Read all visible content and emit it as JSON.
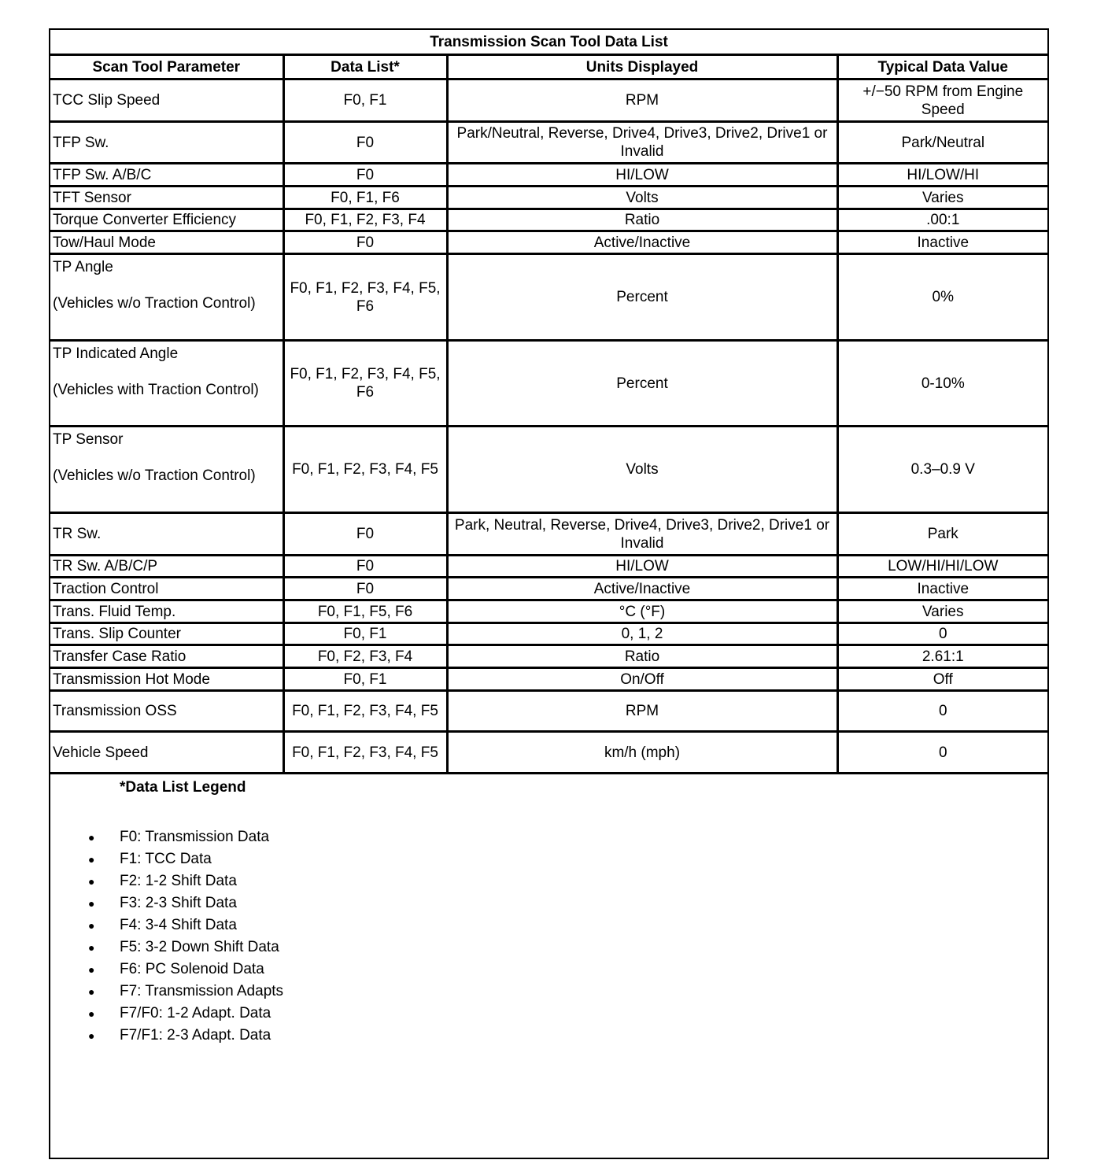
{
  "table": {
    "title": "Transmission Scan Tool Data List",
    "headers": [
      "Scan Tool Parameter",
      "Data List*",
      "Units Displayed",
      "Typical Data Value"
    ],
    "rows": [
      {
        "param": "TCC Slip Speed",
        "note": "",
        "list": "F0, F1",
        "units": "RPM",
        "typical": "+/−50 RPM from Engine Speed"
      },
      {
        "param": "TFP Sw.",
        "note": "",
        "list": "F0",
        "units": "Park/Neutral, Reverse, Drive4, Drive3, Drive2, Drive1 or Invalid",
        "typical": "Park/Neutral"
      },
      {
        "param": "TFP Sw. A/B/C",
        "note": "",
        "list": "F0",
        "units": "HI/LOW",
        "typical": "HI/LOW/HI"
      },
      {
        "param": "TFT Sensor",
        "note": "",
        "list": "F0, F1, F6",
        "units": "Volts",
        "typical": "Varies"
      },
      {
        "param": "Torque Converter Efficiency",
        "note": "",
        "list": "F0, F1, F2, F3, F4",
        "units": "Ratio",
        "typical": ".00:1"
      },
      {
        "param": "Tow/Haul Mode",
        "note": "",
        "list": "F0",
        "units": "Active/Inactive",
        "typical": "Inactive"
      },
      {
        "param": "TP Angle",
        "note": "(Vehicles w/o Traction Control)",
        "list": "F0, F1, F2, F3, F4, F5, F6",
        "units": "Percent",
        "typical": "0%"
      },
      {
        "param": "TP Indicated Angle",
        "note": "(Vehicles with Traction Control)",
        "list": "F0, F1, F2, F3, F4, F5, F6",
        "units": "Percent",
        "typical": "0-10%"
      },
      {
        "param": "TP Sensor",
        "note": "(Vehicles w/o Traction Control)",
        "list": "F0, F1, F2, F3, F4, F5",
        "units": "Volts",
        "typical": "0.3–0.9 V"
      },
      {
        "param": "TR Sw.",
        "note": "",
        "list": "F0",
        "units": "Park, Neutral, Reverse, Drive4, Drive3, Drive2, Drive1 or Invalid",
        "typical": "Park"
      },
      {
        "param": "TR Sw. A/B/C/P",
        "note": "",
        "list": "F0",
        "units": "HI/LOW",
        "typical": "LOW/HI/HI/LOW"
      },
      {
        "param": "Traction Control",
        "note": "",
        "list": "F0",
        "units": "Active/Inactive",
        "typical": "Inactive"
      },
      {
        "param": "Trans. Fluid Temp.",
        "note": "",
        "list": "F0, F1, F5, F6",
        "units": "°C (°F)",
        "typical": "Varies"
      },
      {
        "param": "Trans. Slip Counter",
        "note": "",
        "list": "F0, F1",
        "units": "0, 1, 2",
        "typical": "0"
      },
      {
        "param": "Transfer Case Ratio",
        "note": "",
        "list": "F0, F2, F3, F4",
        "units": "Ratio",
        "typical": "2.61:1"
      },
      {
        "param": "Transmission Hot Mode",
        "note": "",
        "list": "F0, F1",
        "units": "On/Off",
        "typical": "Off"
      },
      {
        "param": "Transmission OSS",
        "note": "",
        "list": "F0, F1, F2, F3, F4, F5",
        "units": "RPM",
        "typical": "0"
      },
      {
        "param": "Vehicle Speed",
        "note": "",
        "list": "F0, F1, F2, F3, F4, F5",
        "units": "km/h (mph)",
        "typical": "0"
      }
    ]
  },
  "legend": {
    "title": "*Data List Legend",
    "items": [
      "F0: Transmission Data",
      "F1: TCC Data",
      "F2: 1-2 Shift Data",
      "F3: 2-3 Shift Data",
      "F4: 3-4 Shift Data",
      "F5: 3-2 Down Shift Data",
      "F6: PC Solenoid Data",
      "F7: Transmission Adapts",
      "F7/F0: 1-2 Adapt. Data",
      "F7/F1: 2-3 Adapt. Data"
    ]
  }
}
